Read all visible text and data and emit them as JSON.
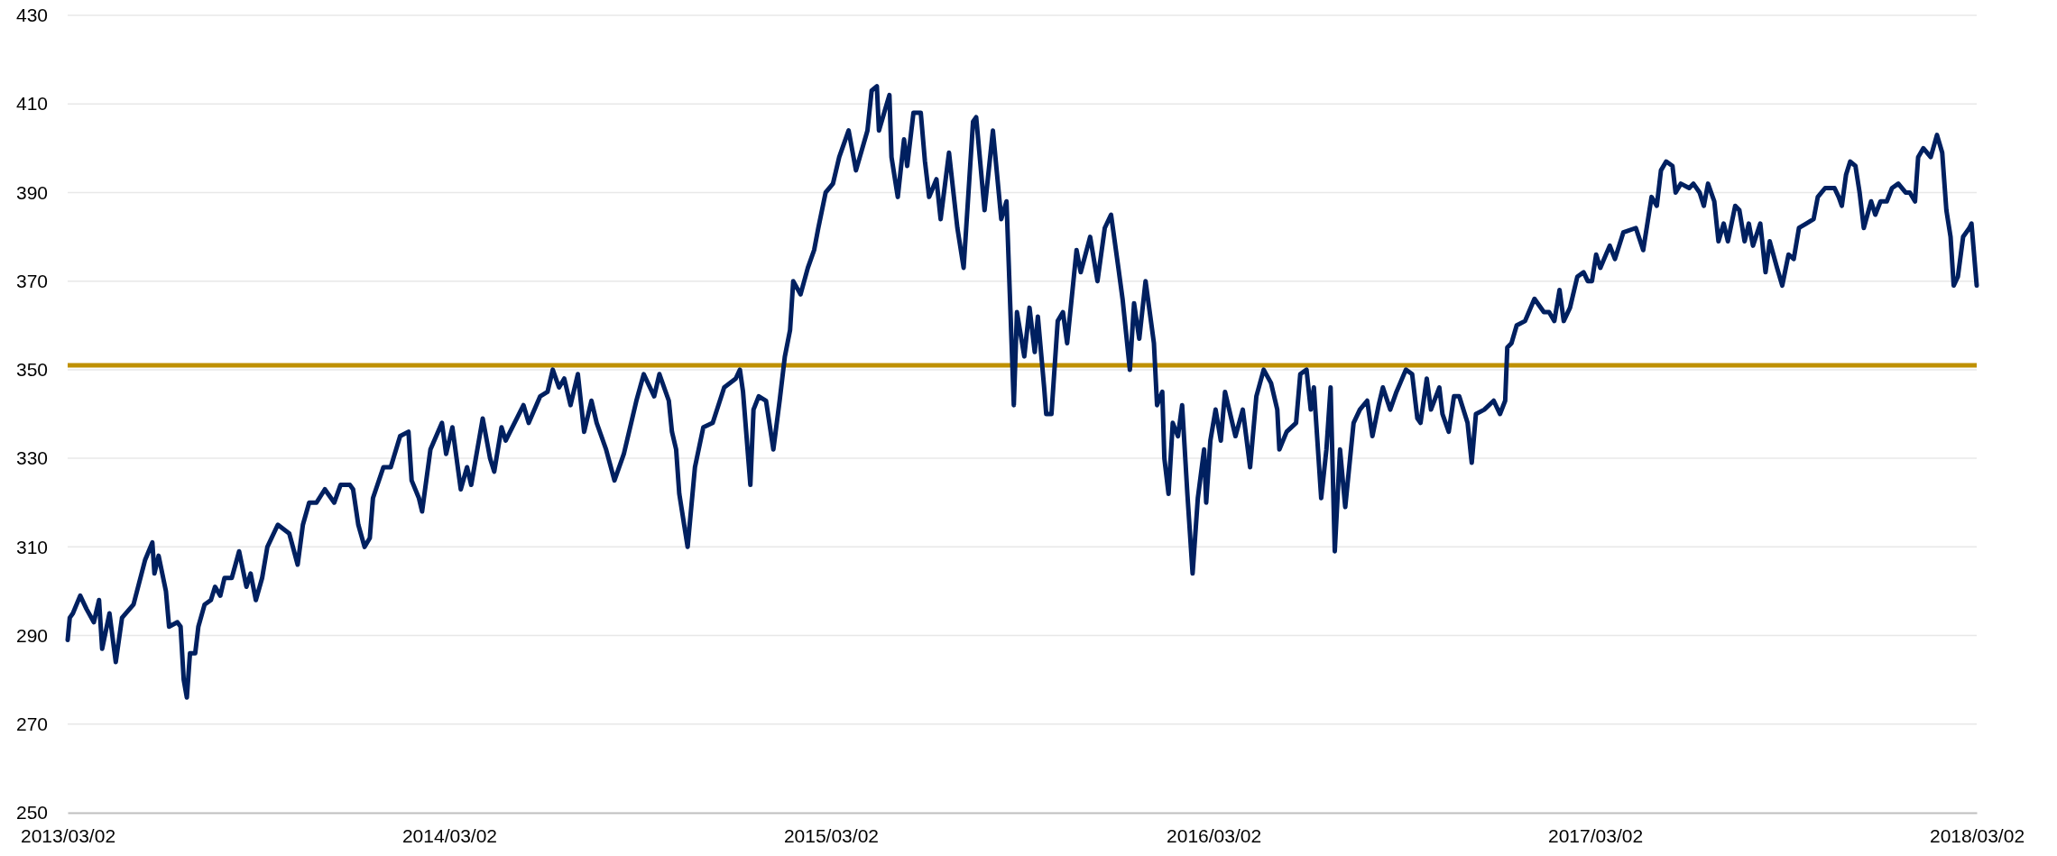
{
  "chart_data": {
    "type": "line",
    "x": [
      "2013-03-02",
      "2013-03-04",
      "2013-03-07",
      "2013-03-14",
      "2013-03-20",
      "2013-03-27",
      "2013-04-01",
      "2013-04-04",
      "2013-04-11",
      "2013-04-17",
      "2013-04-23",
      "2013-05-04",
      "2013-05-15",
      "2013-05-22",
      "2013-05-24",
      "2013-05-28",
      "2013-06-04",
      "2013-06-07",
      "2013-06-15",
      "2013-06-18",
      "2013-06-21",
      "2013-06-24",
      "2013-06-27",
      "2013-07-02",
      "2013-07-05",
      "2013-07-11",
      "2013-07-17",
      "2013-07-21",
      "2013-07-26",
      "2013-07-30",
      "2013-08-06",
      "2013-08-13",
      "2013-08-20",
      "2013-08-24",
      "2013-08-29",
      "2013-09-04",
      "2013-09-09",
      "2013-09-19",
      "2013-09-30",
      "2013-10-08",
      "2013-10-13",
      "2013-10-19",
      "2013-10-26",
      "2013-11-03",
      "2013-11-12",
      "2013-11-18",
      "2013-11-27",
      "2013-11-30",
      "2013-12-05",
      "2013-12-11",
      "2013-12-16",
      "2013-12-19",
      "2013-12-29",
      "2014-01-05",
      "2014-01-14",
      "2014-01-22",
      "2014-01-25",
      "2014-02-01",
      "2014-02-04",
      "2014-02-12",
      "2014-02-23",
      "2014-02-27",
      "2014-03-05",
      "2014-03-13",
      "2014-03-19",
      "2014-03-23",
      "2014-04-03",
      "2014-04-10",
      "2014-04-14",
      "2014-04-21",
      "2014-04-25",
      "2014-05-12",
      "2014-05-17",
      "2014-05-28",
      "2014-06-04",
      "2014-06-09",
      "2014-06-15",
      "2014-06-20",
      "2014-06-26",
      "2014-07-03",
      "2014-07-09",
      "2014-07-16",
      "2014-07-21",
      "2014-07-30",
      "2014-08-07",
      "2014-08-16",
      "2014-08-23",
      "2014-08-28",
      "2014-09-04",
      "2014-09-14",
      "2014-09-19",
      "2014-09-28",
      "2014-10-01",
      "2014-10-05",
      "2014-10-08",
      "2014-10-16",
      "2014-10-23",
      "2014-10-31",
      "2014-11-09",
      "2014-11-20",
      "2014-12-01",
      "2014-12-05",
      "2014-12-08",
      "2014-12-15",
      "2014-12-18",
      "2014-12-23",
      "2014-12-30",
      "2015-01-06",
      "2015-01-12",
      "2015-01-17",
      "2015-01-22",
      "2015-01-25",
      "2015-02-01",
      "2015-02-08",
      "2015-02-14",
      "2015-02-18",
      "2015-02-25",
      "2015-03-04",
      "2015-03-10",
      "2015-03-19",
      "2015-03-26",
      "2015-04-06",
      "2015-04-10",
      "2015-04-15",
      "2015-04-17",
      "2015-04-22",
      "2015-04-27",
      "2015-04-29",
      "2015-05-05",
      "2015-05-11",
      "2015-05-14",
      "2015-05-20",
      "2015-05-27",
      "2015-05-31",
      "2015-06-04",
      "2015-06-11",
      "2015-06-15",
      "2015-06-23",
      "2015-07-01",
      "2015-07-07",
      "2015-07-16",
      "2015-07-19",
      "2015-07-27",
      "2015-08-04",
      "2015-08-12",
      "2015-08-17",
      "2015-08-24",
      "2015-08-27",
      "2015-09-03",
      "2015-09-08",
      "2015-09-13",
      "2015-09-16",
      "2015-09-22",
      "2015-09-24",
      "2015-09-29",
      "2015-10-05",
      "2015-10-10",
      "2015-10-14",
      "2015-10-23",
      "2015-10-27",
      "2015-11-05",
      "2015-11-12",
      "2015-11-19",
      "2015-11-25",
      "2015-12-02",
      "2015-12-06",
      "2015-12-13",
      "2015-12-17",
      "2015-12-22",
      "2015-12-28",
      "2016-01-05",
      "2016-01-08",
      "2016-01-13",
      "2016-01-15",
      "2016-01-19",
      "2016-01-23",
      "2016-01-28",
      "2016-02-01",
      "2016-02-06",
      "2016-02-11",
      "2016-02-16",
      "2016-02-22",
      "2016-02-24",
      "2016-02-28",
      "2016-03-04",
      "2016-03-09",
      "2016-03-13",
      "2016-03-23",
      "2016-03-30",
      "2016-04-06",
      "2016-04-12",
      "2016-04-19",
      "2016-04-26",
      "2016-05-02",
      "2016-05-04",
      "2016-05-11",
      "2016-05-20",
      "2016-05-24",
      "2016-05-30",
      "2016-06-03",
      "2016-06-06",
      "2016-06-13",
      "2016-06-18",
      "2016-06-22",
      "2016-06-26",
      "2016-07-01",
      "2016-07-06",
      "2016-07-14",
      "2016-07-20",
      "2016-07-27",
      "2016-08-01",
      "2016-08-07",
      "2016-08-11",
      "2016-08-18",
      "2016-08-24",
      "2016-09-02",
      "2016-09-08",
      "2016-09-13",
      "2016-09-16",
      "2016-09-22",
      "2016-09-26",
      "2016-10-04",
      "2016-10-07",
      "2016-10-13",
      "2016-10-18",
      "2016-10-23",
      "2016-10-31",
      "2016-11-04",
      "2016-11-08",
      "2016-11-16",
      "2016-11-25",
      "2016-12-01",
      "2016-12-06",
      "2016-12-08",
      "2016-12-12",
      "2016-12-17",
      "2016-12-25",
      "2017-01-03",
      "2017-01-12",
      "2017-01-17",
      "2017-01-22",
      "2017-01-27",
      "2017-01-31",
      "2017-02-06",
      "2017-02-13",
      "2017-02-19",
      "2017-02-23",
      "2017-02-27",
      "2017-03-03",
      "2017-03-07",
      "2017-03-16",
      "2017-03-21",
      "2017-03-29",
      "2017-04-10",
      "2017-04-17",
      "2017-04-25",
      "2017-04-30",
      "2017-05-04",
      "2017-05-09",
      "2017-05-15",
      "2017-05-18",
      "2017-05-23",
      "2017-05-31",
      "2017-06-04",
      "2017-06-10",
      "2017-06-14",
      "2017-06-18",
      "2017-06-24",
      "2017-06-28",
      "2017-07-03",
      "2017-07-07",
      "2017-07-14",
      "2017-07-18",
      "2017-07-23",
      "2017-07-27",
      "2017-07-31",
      "2017-08-07",
      "2017-08-12",
      "2017-08-16",
      "2017-08-23",
      "2017-08-28",
      "2017-09-03",
      "2017-09-08",
      "2017-09-13",
      "2017-09-20",
      "2017-09-27",
      "2017-10-01",
      "2017-10-08",
      "2017-10-17",
      "2017-10-21",
      "2017-10-24",
      "2017-10-28",
      "2017-11-01",
      "2017-11-06",
      "2017-11-10",
      "2017-11-14",
      "2017-11-21",
      "2017-11-25",
      "2017-11-30",
      "2017-12-06",
      "2017-12-11",
      "2017-12-17",
      "2017-12-24",
      "2017-12-28",
      "2018-01-02",
      "2018-01-05",
      "2018-01-10",
      "2018-01-17",
      "2018-01-23",
      "2018-01-28",
      "2018-02-01",
      "2018-02-05",
      "2018-02-08",
      "2018-02-12",
      "2018-02-17",
      "2018-02-23",
      "2018-02-25",
      "2018-03-02"
    ],
    "series": [
      {
        "color": "#002060",
        "values": [
          289,
          294,
          295,
          299,
          296,
          293,
          298,
          287,
          295,
          284,
          294,
          297,
          307,
          311,
          304,
          308,
          300,
          292,
          293,
          292,
          280,
          276,
          286,
          286,
          292,
          297,
          298,
          301,
          299,
          303,
          303,
          309,
          301,
          304,
          298,
          303,
          310,
          315,
          313,
          306,
          315,
          320,
          320,
          323,
          320,
          324,
          324,
          323,
          315,
          310,
          312,
          321,
          328,
          328,
          335,
          336,
          325,
          321,
          318,
          332,
          338,
          331,
          337,
          323,
          328,
          324,
          339,
          330,
          327,
          337,
          334,
          342,
          338,
          344,
          345,
          350,
          346,
          348,
          342,
          349,
          336,
          343,
          338,
          332,
          325,
          331,
          338,
          343,
          349,
          344,
          349,
          343,
          336,
          332,
          322,
          310,
          328,
          337,
          338,
          346,
          348,
          350,
          345,
          324,
          341,
          344,
          343,
          332,
          343,
          353,
          359,
          370,
          367,
          373,
          377,
          382,
          390,
          392,
          398,
          404,
          395,
          404,
          413,
          414,
          404,
          408,
          412,
          398,
          389,
          402,
          396,
          408,
          408,
          397,
          389,
          393,
          384,
          399,
          382,
          373,
          406,
          407,
          386,
          404,
          384,
          388,
          342,
          363,
          353,
          364,
          354,
          362,
          346,
          340,
          340,
          361,
          363,
          356,
          377,
          372,
          380,
          370,
          382,
          385,
          373,
          366,
          350,
          365,
          357,
          370,
          356,
          342,
          345,
          330,
          322,
          338,
          335,
          342,
          322,
          304,
          321,
          332,
          320,
          334,
          341,
          334,
          345,
          335,
          341,
          328,
          344,
          350,
          347,
          341,
          332,
          336,
          338,
          349,
          350,
          341,
          346,
          321,
          332,
          346,
          309,
          332,
          319,
          338,
          341,
          343,
          335,
          342,
          346,
          341,
          345,
          350,
          349,
          339,
          338,
          348,
          341,
          346,
          340,
          336,
          344,
          344,
          338,
          329,
          340,
          341,
          343,
          340,
          343,
          355,
          356,
          360,
          361,
          366,
          363,
          363,
          361,
          368,
          361,
          364,
          371,
          372,
          370,
          370,
          376,
          373,
          378,
          375,
          381,
          382,
          377,
          389,
          387,
          395,
          397,
          396,
          390,
          392,
          391,
          392,
          390,
          387,
          392,
          388,
          379,
          383,
          379,
          387,
          386,
          379,
          383,
          378,
          383,
          372,
          379,
          373,
          369,
          376,
          375,
          382,
          383,
          384,
          389,
          391,
          391,
          389,
          387,
          394,
          397,
          396,
          390,
          382,
          388,
          385,
          388,
          388,
          391,
          392,
          390,
          390,
          388,
          398,
          400,
          398,
          403,
          399,
          386,
          380,
          369,
          371,
          380,
          382,
          383,
          369
        ]
      }
    ],
    "ylim": [
      250,
      430
    ],
    "yticks": [
      250,
      270,
      290,
      310,
      330,
      350,
      370,
      390,
      410,
      430
    ],
    "xlim": [
      "2013-03-02",
      "2018-03-02"
    ],
    "xticks": [
      {
        "value": "2013-03-02",
        "label": "2013/03/02"
      },
      {
        "value": "2014-03-02",
        "label": "2014/03/02"
      },
      {
        "value": "2015-03-02",
        "label": "2015/03/02"
      },
      {
        "value": "2016-03-02",
        "label": "2016/03/02"
      },
      {
        "value": "2017-03-02",
        "label": "2017/03/02"
      },
      {
        "value": "2018-03-02",
        "label": "2018/03/02"
      }
    ],
    "grid": "y",
    "ref_lines": [
      {
        "axis": "y",
        "value": 351,
        "color": "#bf9000"
      }
    ]
  }
}
